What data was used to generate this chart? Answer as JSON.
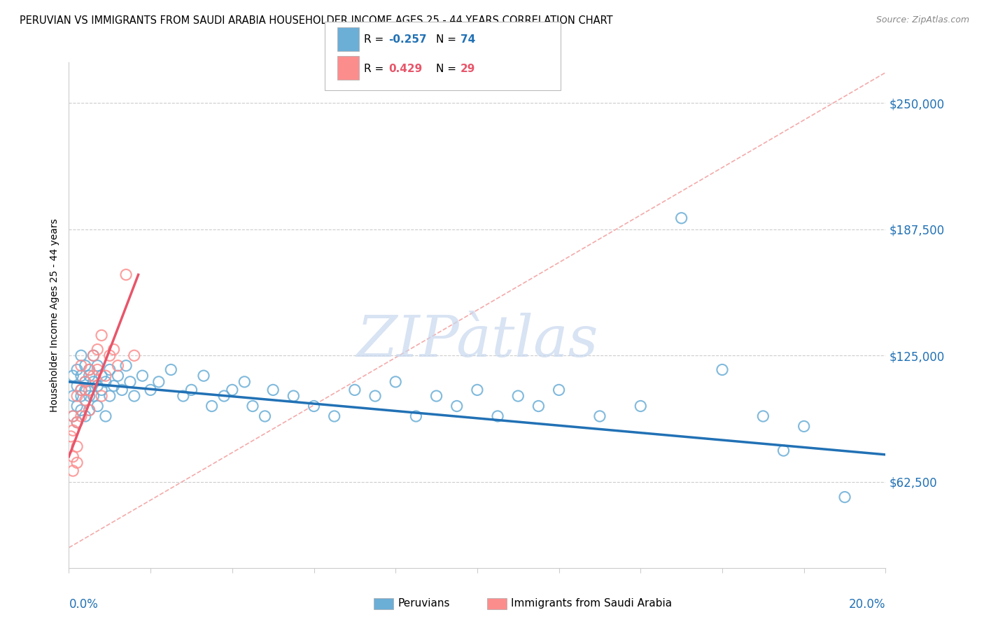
{
  "title": "PERUVIAN VS IMMIGRANTS FROM SAUDI ARABIA HOUSEHOLDER INCOME AGES 25 - 44 YEARS CORRELATION CHART",
  "source": "Source: ZipAtlas.com",
  "ylabel": "Householder Income Ages 25 - 44 years",
  "xmin": 0.0,
  "xmax": 0.2,
  "ymin": 20000,
  "ymax": 270000,
  "ytick_vals": [
    62500,
    125000,
    187500,
    250000
  ],
  "ytick_labels": [
    "$62,500",
    "$125,000",
    "$187,500",
    "$250,000"
  ],
  "legend_label1": "Peruvians",
  "legend_label2": "Immigrants from Saudi Arabia",
  "blue_color": "#6BAED6",
  "pink_color": "#FC8D8D",
  "blue_trend_color": "#2171B5",
  "pink_trend_color": "#E8556A",
  "diag_line_color": "#F4AAAA",
  "watermark_color": "#C8D8EE",
  "legend_r1_label": "R = -0.257",
  "legend_r1_n": "N = 74",
  "legend_r2_label": "R =  0.429",
  "legend_r2_n": "N = 29",
  "blue_x": [
    0.001,
    0.001,
    0.001,
    0.002,
    0.002,
    0.002,
    0.002,
    0.003,
    0.003,
    0.003,
    0.003,
    0.003,
    0.004,
    0.004,
    0.004,
    0.004,
    0.005,
    0.005,
    0.005,
    0.005,
    0.006,
    0.006,
    0.006,
    0.007,
    0.007,
    0.007,
    0.008,
    0.008,
    0.009,
    0.009,
    0.01,
    0.01,
    0.011,
    0.012,
    0.013,
    0.014,
    0.015,
    0.016,
    0.018,
    0.02,
    0.022,
    0.025,
    0.028,
    0.03,
    0.033,
    0.035,
    0.038,
    0.04,
    0.043,
    0.045,
    0.048,
    0.05,
    0.055,
    0.06,
    0.065,
    0.07,
    0.075,
    0.08,
    0.085,
    0.09,
    0.095,
    0.1,
    0.105,
    0.11,
    0.115,
    0.12,
    0.13,
    0.14,
    0.15,
    0.16,
    0.17,
    0.175,
    0.18,
    0.19
  ],
  "blue_y": [
    115000,
    105000,
    95000,
    110000,
    118000,
    100000,
    92000,
    108000,
    115000,
    125000,
    98000,
    105000,
    112000,
    120000,
    95000,
    108000,
    115000,
    105000,
    118000,
    98000,
    112000,
    125000,
    105000,
    110000,
    120000,
    100000,
    115000,
    108000,
    112000,
    95000,
    118000,
    105000,
    110000,
    115000,
    108000,
    120000,
    112000,
    105000,
    115000,
    108000,
    112000,
    118000,
    105000,
    108000,
    115000,
    100000,
    105000,
    108000,
    112000,
    100000,
    95000,
    108000,
    105000,
    100000,
    95000,
    108000,
    105000,
    112000,
    95000,
    105000,
    100000,
    108000,
    95000,
    105000,
    100000,
    108000,
    95000,
    100000,
    193000,
    118000,
    95000,
    78000,
    90000,
    55000
  ],
  "pink_x": [
    0.0005,
    0.001,
    0.001,
    0.001,
    0.001,
    0.002,
    0.002,
    0.002,
    0.002,
    0.003,
    0.003,
    0.003,
    0.004,
    0.004,
    0.005,
    0.005,
    0.005,
    0.006,
    0.006,
    0.007,
    0.007,
    0.008,
    0.008,
    0.009,
    0.01,
    0.011,
    0.012,
    0.014,
    0.016
  ],
  "pink_y": [
    85000,
    95000,
    88000,
    75000,
    68000,
    105000,
    92000,
    80000,
    72000,
    108000,
    120000,
    95000,
    112000,
    103000,
    118000,
    108000,
    98000,
    125000,
    115000,
    128000,
    118000,
    135000,
    105000,
    115000,
    125000,
    128000,
    120000,
    165000,
    125000
  ]
}
